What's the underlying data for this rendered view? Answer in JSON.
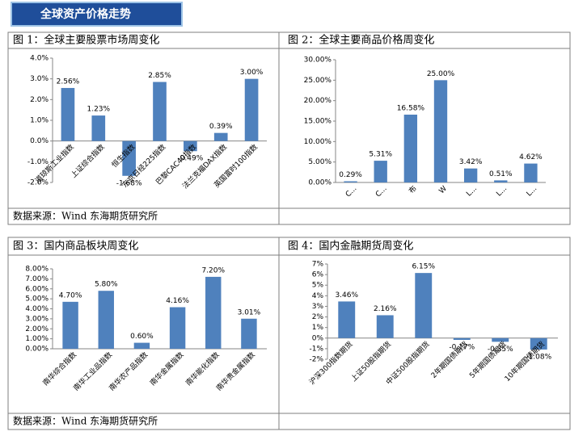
{
  "header": {
    "title": "全球资产价格走势"
  },
  "chart_data": [
    {
      "type": "bar",
      "title": "图 1：全球主要股票市场周变化",
      "categories": [
        "道琼斯工业指数",
        "上证综合指数",
        "恒生指数",
        "东京日经225指数",
        "巴黎CAC40指数",
        "法兰克福DAX指数",
        "英国富时100指数"
      ],
      "values": [
        2.56,
        1.23,
        -1.68,
        2.85,
        -0.49,
        0.39,
        3.0
      ],
      "value_labels": [
        "2.56%",
        "1.23%",
        "-1.68%",
        "2.85%",
        "-0.49%",
        "0.39%",
        "3.00%"
      ],
      "color": "#4f81bd",
      "ylim": [
        -2,
        4
      ],
      "yticks": [
        {
          "value": -2,
          "label": "-2.0%"
        },
        {
          "value": -1,
          "label": "-1.0%"
        },
        {
          "value": 0,
          "label": "0.0%"
        },
        {
          "value": 1,
          "label": "1.0%"
        },
        {
          "value": 2,
          "label": "2.0%"
        },
        {
          "value": 3,
          "label": "3.0%"
        },
        {
          "value": 4,
          "label": "4.0%"
        }
      ]
    },
    {
      "type": "bar",
      "title": "图 2：全球主要商品价格周变化",
      "categories": [
        "C...",
        "C...",
        "布",
        "W",
        "L...",
        "L...",
        "L..."
      ],
      "values": [
        0.29,
        5.31,
        16.58,
        25.0,
        3.42,
        0.51,
        4.62
      ],
      "value_labels": [
        "0.29%",
        "5.31%",
        "16.58%",
        "25.00%",
        "3.42%",
        "0.51%",
        "4.62%"
      ],
      "color": "#4f81bd",
      "ylim": [
        0,
        30
      ],
      "yticks": [
        {
          "value": 0,
          "label": "0.00%"
        },
        {
          "value": 5,
          "label": "5.00%"
        },
        {
          "value": 10,
          "label": "10.00%"
        },
        {
          "value": 15,
          "label": "15.00%"
        },
        {
          "value": 20,
          "label": "20.00%"
        },
        {
          "value": 25,
          "label": "25.00%"
        },
        {
          "value": 30,
          "label": "30.00%"
        }
      ]
    },
    {
      "type": "bar",
      "title": "图 3：国内商品板块周变化",
      "categories": [
        "南华综合指数",
        "南华工业品指数",
        "南华农产品指数",
        "南华金属指数",
        "南华能化指数",
        "南华贵金属指数"
      ],
      "values": [
        4.7,
        5.8,
        0.6,
        4.16,
        7.2,
        3.01
      ],
      "value_labels": [
        "4.70%",
        "5.80%",
        "0.60%",
        "4.16%",
        "7.20%",
        "3.01%"
      ],
      "color": "#4f81bd",
      "ylim": [
        0,
        8
      ],
      "yticks": [
        {
          "value": 0,
          "label": "0.00%"
        },
        {
          "value": 1,
          "label": "1.00%"
        },
        {
          "value": 2,
          "label": "2.00%"
        },
        {
          "value": 3,
          "label": "3.00%"
        },
        {
          "value": 4,
          "label": "4.00%"
        },
        {
          "value": 5,
          "label": "5.00%"
        },
        {
          "value": 6,
          "label": "6.00%"
        },
        {
          "value": 7,
          "label": "7.00%"
        },
        {
          "value": 8,
          "label": "8.00%"
        }
      ]
    },
    {
      "type": "bar",
      "title": "图 4：国内金融期货周变化",
      "categories": [
        "沪深300指数期货",
        "上证50股指期货",
        "中证500股指期货",
        "2年期国债期货",
        "5年期国债期货",
        "10年期国债期货"
      ],
      "values": [
        3.46,
        2.16,
        6.15,
        -0.17,
        -0.35,
        -1.08
      ],
      "value_labels": [
        "3.46%",
        "2.16%",
        "6.15%",
        "-0.17%",
        "-0.35%",
        "-1.08%"
      ],
      "color": "#4f81bd",
      "ylim": [
        -2,
        7
      ],
      "yticks": [
        {
          "value": -2,
          "label": "-2%"
        },
        {
          "value": -1,
          "label": "-1%"
        },
        {
          "value": 0,
          "label": "0%"
        },
        {
          "value": 1,
          "label": "1%"
        },
        {
          "value": 2,
          "label": "2%"
        },
        {
          "value": 3,
          "label": "3%"
        },
        {
          "value": 4,
          "label": "4%"
        },
        {
          "value": 5,
          "label": "5%"
        },
        {
          "value": 6,
          "label": "6%"
        },
        {
          "value": 7,
          "label": "7%"
        }
      ]
    }
  ],
  "sources": [
    "数据来源：Wind 东海期货研究所",
    "数据来源：Wind  东海期货研究所"
  ]
}
